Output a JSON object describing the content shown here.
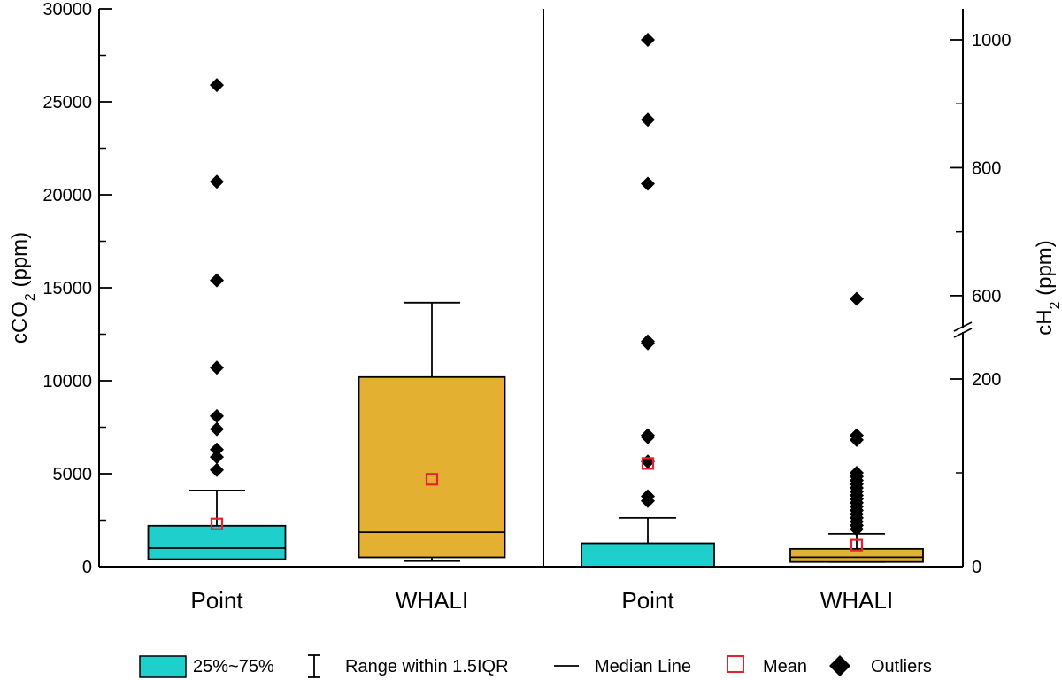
{
  "chart_data": [
    {
      "type": "box",
      "panel": "left",
      "ylabel_prefix": "cCO",
      "ylabel_sub": "2",
      "ylabel_suffix": " (ppm)",
      "ylim": [
        0,
        30000
      ],
      "yticks": [
        0,
        5000,
        10000,
        15000,
        20000,
        25000,
        30000
      ],
      "categories": [
        "Point",
        "WHALI"
      ],
      "boxes": [
        {
          "name": "Point",
          "q1": 400,
          "median": 1000,
          "q3": 2200,
          "whisker_low": 400,
          "whisker_high": 4100,
          "mean": 2300,
          "outliers": [
            5200,
            5900,
            6300,
            7400,
            8100,
            10700,
            15400,
            20700,
            25900
          ]
        },
        {
          "name": "WHALI",
          "q1": 500,
          "median": 1850,
          "q3": 10200,
          "whisker_low": 300,
          "whisker_high": 14200,
          "mean": 4700,
          "outliers": []
        }
      ]
    },
    {
      "type": "box",
      "panel": "right",
      "ylabel_prefix": "cH",
      "ylabel_sub": "2",
      "ylabel_suffix": " (ppm)",
      "axis_break": [
        250,
        550
      ],
      "ylim": [
        0,
        1050
      ],
      "yticks": [
        0,
        200,
        600,
        800,
        1000
      ],
      "categories": [
        "Point",
        "WHALI"
      ],
      "boxes": [
        {
          "name": "Point",
          "q1": 0,
          "median": 0,
          "q3": 25,
          "whisker_low": 0,
          "whisker_high": 52,
          "mean": 110,
          "outliers": [
            70,
            75,
            112,
            138,
            140,
            238,
            240,
            775,
            875,
            1000
          ]
        },
        {
          "name": "WHALI",
          "q1": 5,
          "median": 10,
          "q3": 19,
          "whisker_low": 5,
          "whisker_high": 35,
          "mean": 23,
          "outliers": [
            40,
            44,
            48,
            52,
            56,
            60,
            64,
            68,
            72,
            76,
            80,
            84,
            88,
            92,
            96,
            100,
            135,
            140,
            595
          ]
        }
      ]
    }
  ],
  "colors": {
    "point_box": "#1fcfcb",
    "whali_box": "#e3b032",
    "mean": "#e8212a",
    "outlier": "#000000"
  },
  "legend": {
    "box_label": "25%~75%",
    "range_label": "Range within 1.5IQR",
    "median_label": "Median Line",
    "mean_label": "Mean",
    "outliers_label": "Outliers"
  }
}
